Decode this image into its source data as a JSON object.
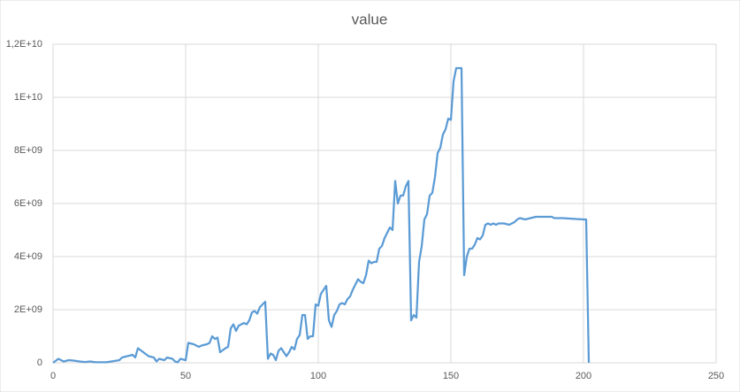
{
  "chart_data": {
    "type": "line",
    "title": "value",
    "color": "#5b9bd5",
    "grid": true,
    "x": [
      0,
      2,
      4,
      6,
      8,
      10,
      12,
      14,
      16,
      20,
      22,
      25,
      26,
      28,
      30,
      31,
      32,
      34,
      36,
      38,
      39,
      40,
      42,
      43,
      45,
      46,
      47,
      48,
      50,
      51,
      53,
      55,
      56,
      58,
      59,
      60,
      61,
      62,
      63,
      65,
      66,
      67,
      68,
      69,
      70,
      72,
      73,
      74,
      75,
      76,
      77,
      78,
      80,
      81,
      82,
      83,
      84,
      85,
      86,
      87,
      88,
      89,
      90,
      91,
      92,
      93,
      94,
      95,
      96,
      97,
      98,
      99,
      100,
      101,
      102,
      103,
      104,
      105,
      106,
      107,
      108,
      109,
      110,
      111,
      112,
      113,
      114,
      115,
      116,
      117,
      118,
      119,
      120,
      121,
      122,
      123,
      124,
      125,
      126,
      127,
      128,
      129,
      130,
      131,
      132,
      133,
      134,
      135,
      136,
      137,
      138,
      139,
      140,
      141,
      142,
      143,
      144,
      145,
      146,
      147,
      148,
      149,
      150,
      151,
      152,
      153,
      154,
      155,
      156,
      157,
      158,
      159,
      160,
      161,
      162,
      163,
      164,
      165,
      166,
      167,
      168,
      170,
      172,
      174,
      175,
      176,
      178,
      180,
      182,
      185,
      188,
      189,
      192,
      200,
      201,
      202
    ],
    "values": [
      0,
      150000000.0,
      50000000.0,
      100000000.0,
      80000000.0,
      50000000.0,
      30000000.0,
      50000000.0,
      20000000.0,
      20000000.0,
      50000000.0,
      100000000.0,
      200000000.0,
      250000000.0,
      300000000.0,
      200000000.0,
      550000000.0,
      400000000.0,
      250000000.0,
      200000000.0,
      50000000.0,
      150000000.0,
      100000000.0,
      200000000.0,
      150000000.0,
      50000000.0,
      20000000.0,
      150000000.0,
      100000000.0,
      750000000.0,
      700000000.0,
      600000000.0,
      650000000.0,
      700000000.0,
      750000000.0,
      1000000000.0,
      900000000.0,
      950000000.0,
      400000000.0,
      550000000.0,
      600000000.0,
      1300000000.0,
      1450000000.0,
      1200000000.0,
      1400000000.0,
      1500000000.0,
      1450000000.0,
      1600000000.0,
      1900000000.0,
      1950000000.0,
      1850000000.0,
      2100000000.0,
      2300000000.0,
      150000000.0,
      350000000.0,
      300000000.0,
      100000000.0,
      450000000.0,
      550000000.0,
      400000000.0,
      250000000.0,
      400000000.0,
      600000000.0,
      500000000.0,
      900000000.0,
      1050000000.0,
      1800000000.0,
      1800000000.0,
      900000000.0,
      1000000000.0,
      1000000000.0,
      2200000000.0,
      2150000000.0,
      2600000000.0,
      2750000000.0,
      2900000000.0,
      1600000000.0,
      1350000000.0,
      1800000000.0,
      1950000000.0,
      2200000000.0,
      2250000000.0,
      2200000000.0,
      2400000000.0,
      2500000000.0,
      2750000000.0,
      2950000000.0,
      3150000000.0,
      3050000000.0,
      3000000000.0,
      3300000000.0,
      3850000000.0,
      3750000000.0,
      3800000000.0,
      3800000000.0,
      4300000000.0,
      4400000000.0,
      4700000000.0,
      4900000000.0,
      5100000000.0,
      5000000000.0,
      6850000000.0,
      6000000000.0,
      6300000000.0,
      6300000000.0,
      6650000000.0,
      6850000000.0,
      1600000000.0,
      1800000000.0,
      1700000000.0,
      3800000000.0,
      4400000000.0,
      5400000000.0,
      5600000000.0,
      6300000000.0,
      6400000000.0,
      7000000000.0,
      7900000000.0,
      8100000000.0,
      8600000000.0,
      8800000000.0,
      9200000000.0,
      9150000000.0,
      10600000000.0,
      11100000000.0,
      11100000000.0,
      11100000000.0,
      3300000000.0,
      4000000000.0,
      4300000000.0,
      4300000000.0,
      4450000000.0,
      4700000000.0,
      4650000000.0,
      4800000000.0,
      5200000000.0,
      5250000000.0,
      5200000000.0,
      5250000000.0,
      5200000000.0,
      5250000000.0,
      5250000000.0,
      5200000000.0,
      5300000000.0,
      5400000000.0,
      5450000000.0,
      5400000000.0,
      5450000000.0,
      5500000000.0,
      5500000000.0,
      5500000000.0,
      5450000000.0,
      5450000000.0,
      5400000000.0,
      5400000000.0,
      0
    ],
    "xlim": [
      0,
      250
    ],
    "xticks": [
      0,
      50,
      100,
      150,
      200,
      250
    ],
    "ylim": [
      0,
      12000000000
    ],
    "yticks": [
      0,
      {
        "value": 2000000000,
        "label": "2E+09"
      },
      {
        "value": 4000000000,
        "label": "4E+09"
      },
      {
        "value": 6000000000,
        "label": "6E+09"
      },
      {
        "value": 8000000000,
        "label": "8E+09"
      },
      {
        "value": 10000000000,
        "label": "1E+10"
      },
      {
        "value": 12000000000,
        "label": "1,2E+10"
      }
    ]
  }
}
